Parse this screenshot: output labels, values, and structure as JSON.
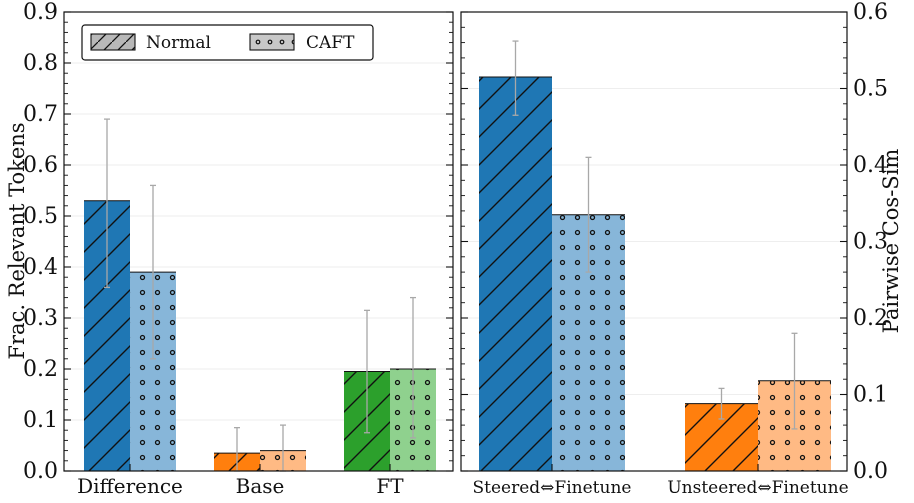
{
  "chart_data": [
    {
      "type": "bar",
      "ylabel": "Frac. Relevant Tokens",
      "ylim": [
        0,
        0.9
      ],
      "yticks": [
        "0.0",
        "0.1",
        "0.2",
        "0.3",
        "0.4",
        "0.5",
        "0.6",
        "0.7",
        "0.8",
        "0.9"
      ],
      "categories": [
        "Difference",
        "Base",
        "FT"
      ],
      "series": [
        {
          "name": "Normal",
          "values": [
            0.53,
            0.035,
            0.195
          ],
          "err_low": [
            0.36,
            0.0,
            0.075
          ],
          "err_high": [
            0.69,
            0.085,
            0.315
          ]
        },
        {
          "name": "CAFT",
          "values": [
            0.39,
            0.04,
            0.2
          ],
          "err_low": [
            0.22,
            0.0,
            0.065
          ],
          "err_high": [
            0.56,
            0.09,
            0.34
          ]
        }
      ],
      "colors": {
        "normal": [
          "#1f77b4",
          "#ff7f0e",
          "#2ca02c"
        ],
        "caft": [
          "#87b6d9",
          "#ffba84",
          "#8fd18e"
        ]
      },
      "legend": {
        "position": "top-left",
        "entries": [
          "Normal",
          "CAFT"
        ]
      }
    },
    {
      "type": "bar",
      "ylabel": "Pairwise Cos-Sim",
      "ylim": [
        0,
        0.6
      ],
      "yticks": [
        "0.0",
        "0.1",
        "0.2",
        "0.3",
        "0.4",
        "0.5",
        "0.6"
      ],
      "categories": [
        "Steered⇔Finetune",
        "Unsteered⇔Finetune"
      ],
      "series": [
        {
          "name": "Normal",
          "values": [
            0.515,
            0.088
          ],
          "err_low": [
            0.465,
            0.068
          ],
          "err_high": [
            0.562,
            0.108
          ]
        },
        {
          "name": "CAFT",
          "values": [
            0.335,
            0.118
          ],
          "err_low": [
            0.26,
            0.055
          ],
          "err_high": [
            0.41,
            0.18
          ]
        }
      ],
      "colors": {
        "normal": [
          "#1f77b4",
          "#ff7f0e"
        ],
        "caft": [
          "#87b6d9",
          "#ffba84"
        ]
      }
    }
  ]
}
